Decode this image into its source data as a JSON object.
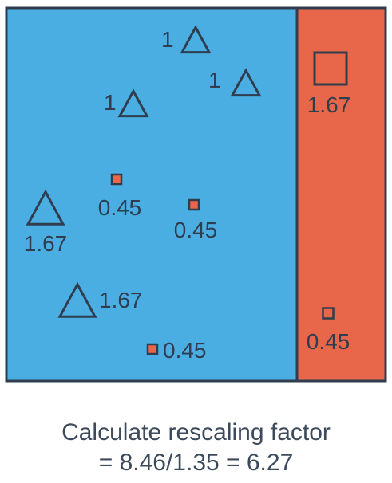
{
  "colors": {
    "blue_region": "#4aaee3",
    "orange_region": "#e8664a",
    "outline": "#2f3d4f",
    "caption_text": "#3d4a5c"
  },
  "regions": [
    {
      "name": "blue-region",
      "color_key": "blue_region"
    },
    {
      "name": "orange-region",
      "color_key": "orange_region"
    }
  ],
  "items": [
    {
      "shape": "triangle",
      "label": "1"
    },
    {
      "shape": "triangle",
      "label": "1"
    },
    {
      "shape": "triangle",
      "label": "1"
    },
    {
      "shape": "triangle",
      "label": "1.67"
    },
    {
      "shape": "triangle",
      "label": "1.67"
    },
    {
      "shape": "square",
      "label": "0.45"
    },
    {
      "shape": "square",
      "label": "0.45"
    },
    {
      "shape": "square",
      "label": "0.45"
    },
    {
      "shape": "square",
      "label": "1.67"
    },
    {
      "shape": "square",
      "label": "0.45"
    }
  ],
  "caption": {
    "line1": "Calculate rescaling factor",
    "line2": "= 8.46/1.35 = 6.27"
  }
}
